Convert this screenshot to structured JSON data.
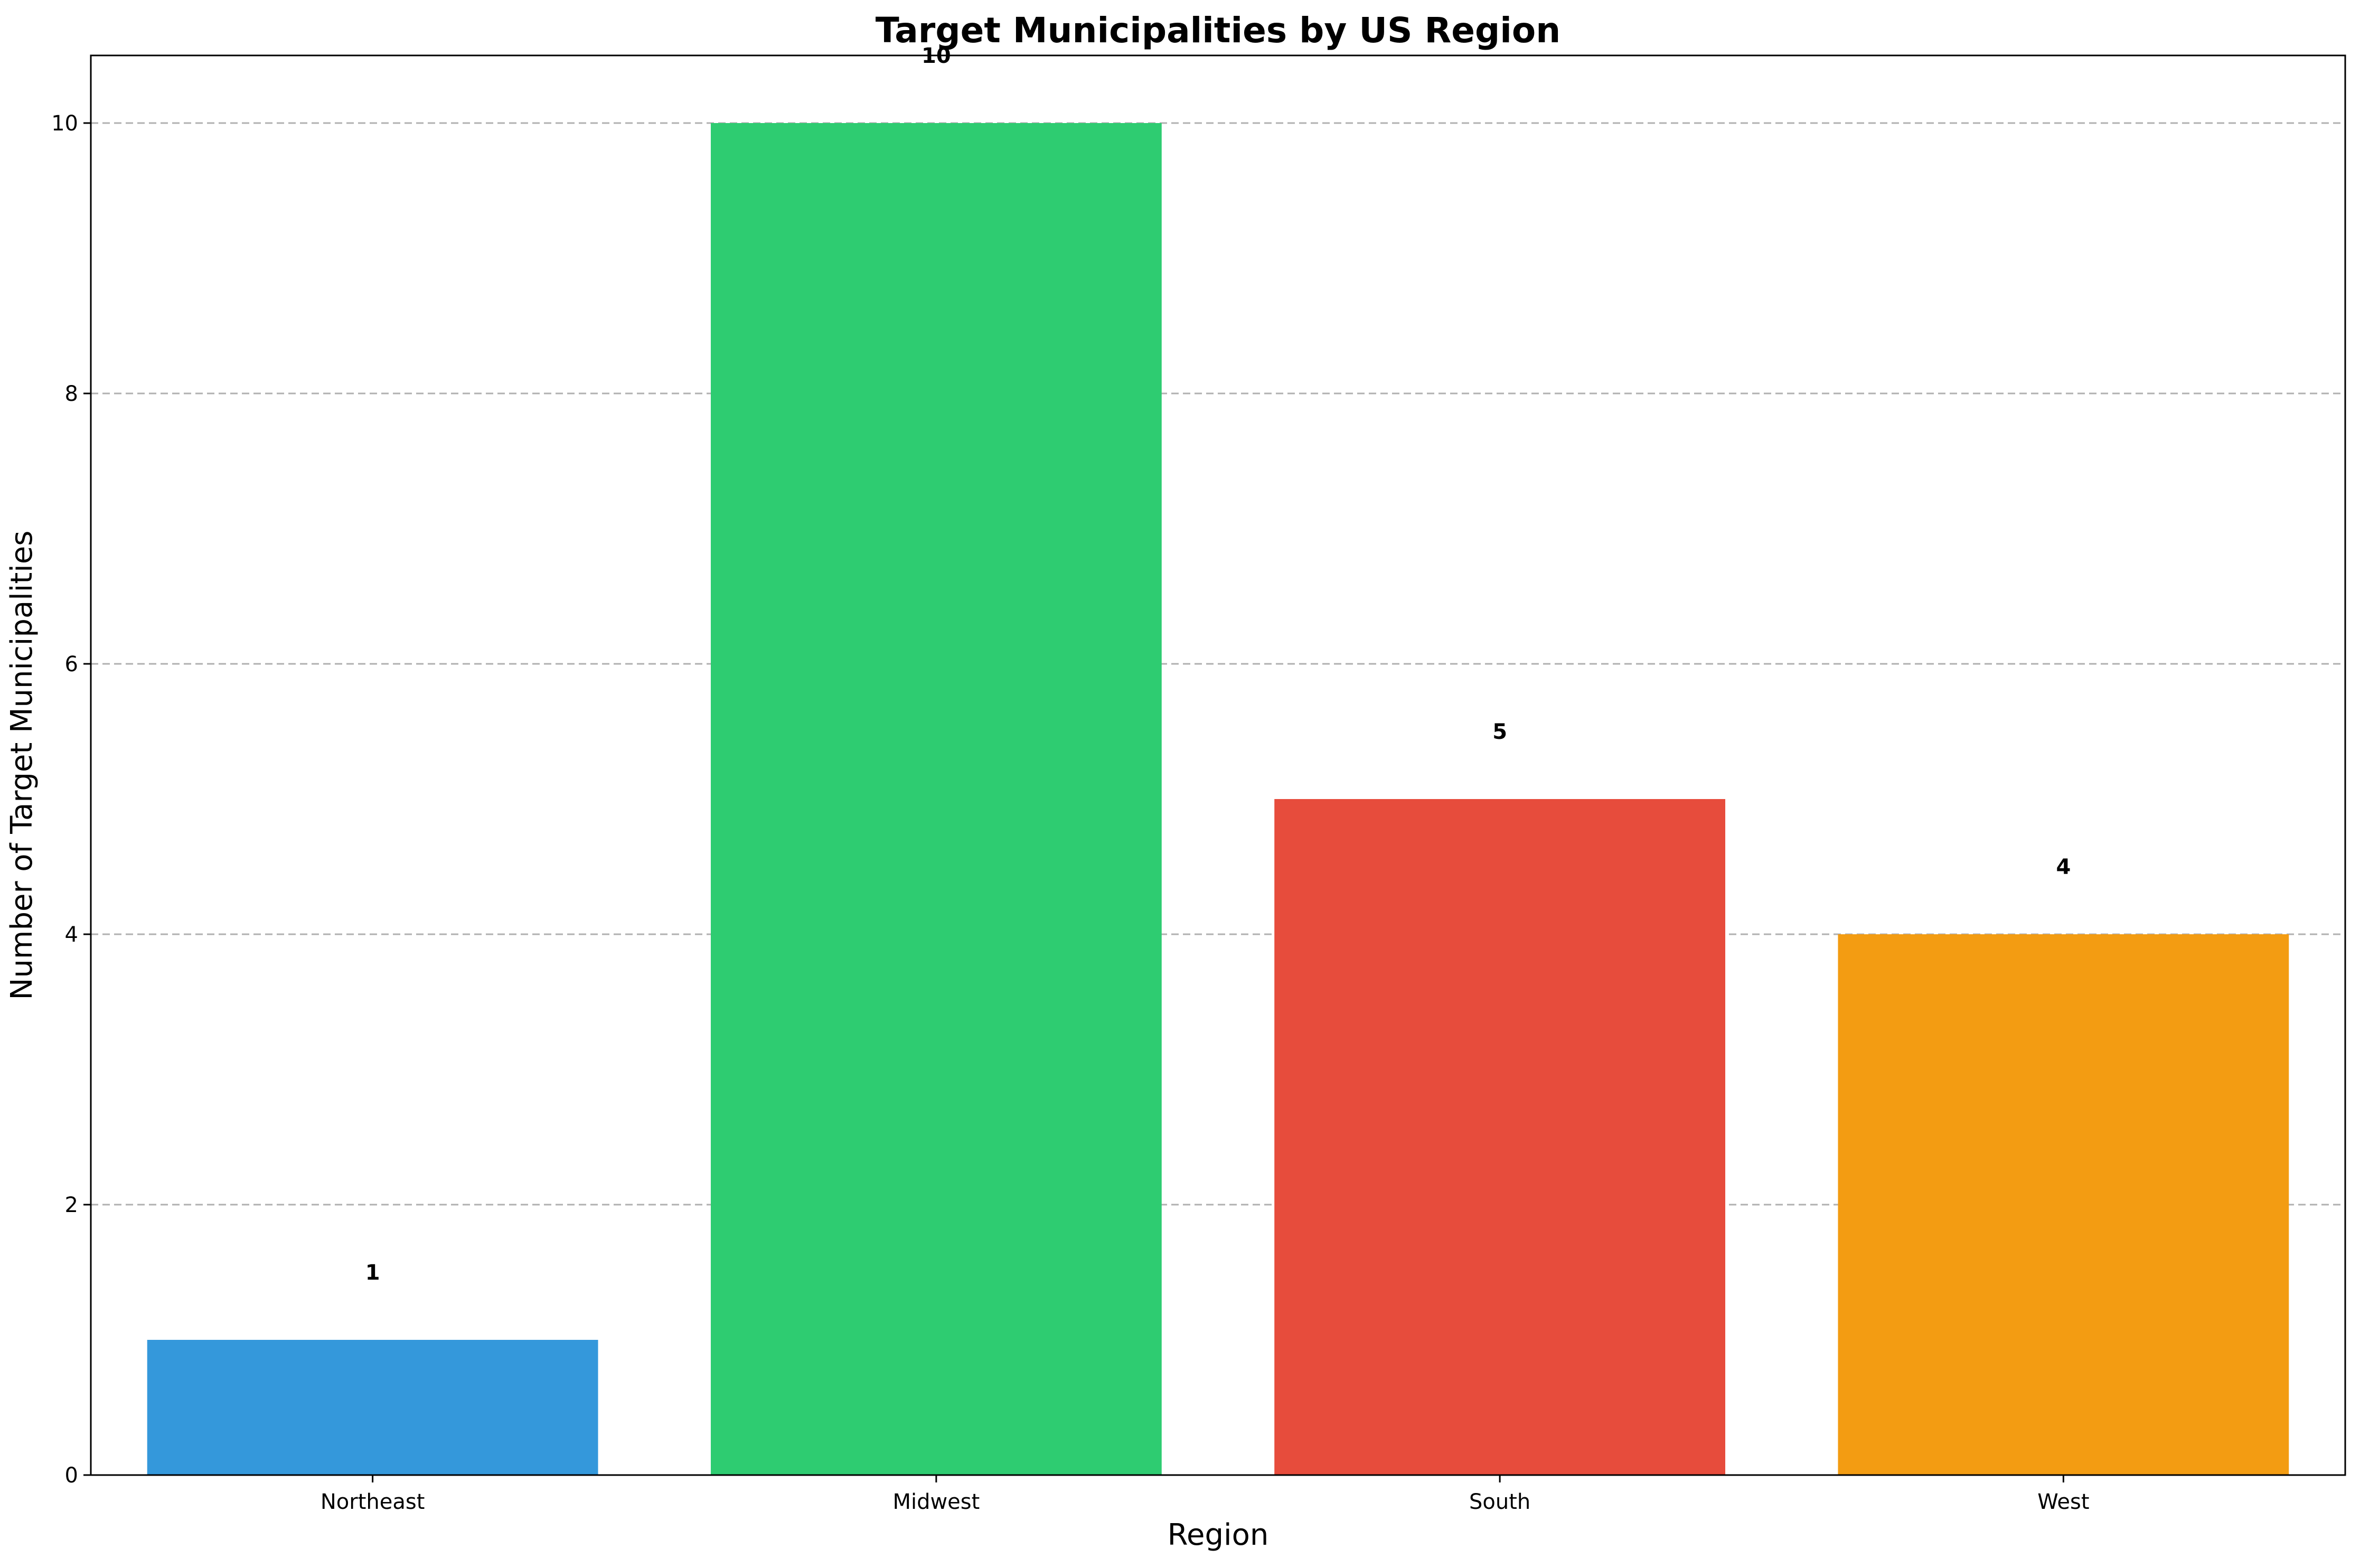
{
  "chart_data": {
    "type": "bar",
    "title": "Target Municipalities by US Region",
    "xlabel": "Region",
    "ylabel": "Number of Target Municipalities",
    "categories": [
      "Northeast",
      "Midwest",
      "South",
      "West"
    ],
    "values": [
      1,
      10,
      5,
      4
    ],
    "data_labels": [
      "1",
      "10",
      "5",
      "4"
    ],
    "colors": [
      "#3498db",
      "#2ecc71",
      "#e74c3c",
      "#f39c12"
    ],
    "ylim": [
      0,
      10.5
    ],
    "yticks": [
      0,
      2,
      4,
      6,
      8,
      10
    ],
    "grid": true,
    "grid_axis": "y",
    "grid_style": "dashed"
  }
}
